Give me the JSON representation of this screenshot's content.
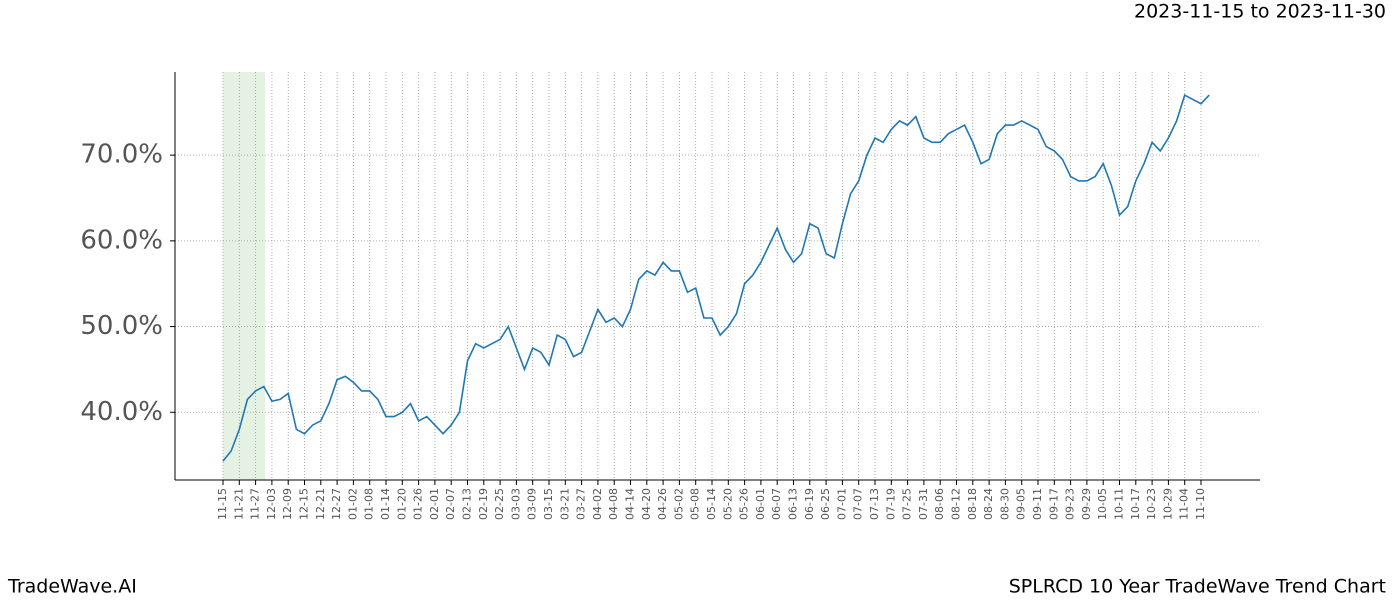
{
  "chart_data": {
    "type": "line",
    "title": "2023-11-15 to 2023-11-30",
    "brand": "TradeWave.AI",
    "subtitle": "SPLRCD 10 Year TradeWave Trend Chart",
    "categories": [
      "11-15",
      null,
      "11-21",
      null,
      "11-27",
      null,
      "12-03",
      null,
      "12-09",
      null,
      "12-15",
      null,
      "12-21",
      null,
      "12-27",
      null,
      "01-02",
      null,
      "01-08",
      null,
      "01-14",
      null,
      "01-20",
      null,
      "01-26",
      null,
      "02-01",
      null,
      "02-07",
      null,
      "02-13",
      null,
      "02-19",
      null,
      "02-25",
      null,
      "03-03",
      null,
      "03-09",
      null,
      "03-15",
      null,
      "03-21",
      null,
      "03-27",
      null,
      "04-02",
      null,
      "04-08",
      null,
      "04-14",
      null,
      "04-20",
      null,
      "04-26",
      null,
      "05-02",
      null,
      "05-08",
      null,
      "05-14",
      null,
      "05-20",
      null,
      "05-26",
      null,
      "06-01",
      null,
      "06-07",
      null,
      "06-13",
      null,
      "06-19",
      null,
      "06-25",
      null,
      "07-01",
      null,
      "07-07",
      null,
      "07-13",
      null,
      "07-19",
      null,
      "07-25",
      null,
      "07-31",
      null,
      "08-06",
      null,
      "08-12",
      null,
      "08-18",
      null,
      "08-24",
      null,
      "08-30",
      null,
      "09-05",
      null,
      "09-11",
      null,
      "09-17",
      null,
      "09-23",
      null,
      "09-29",
      null,
      "10-05",
      null,
      "10-11",
      null,
      "10-17",
      null,
      "10-23",
      null,
      "10-29",
      null,
      "11-04",
      null,
      "11-10",
      null
    ],
    "series": [
      {
        "color": "#1f77b4",
        "values": [
          34.3,
          35.5,
          38,
          41.5,
          42.5,
          43,
          41.3,
          41.5,
          42.2,
          38,
          37.5,
          38.5,
          39,
          41,
          43.8,
          44.2,
          43.5,
          42.5,
          42.5,
          41.5,
          39.5,
          39.5,
          40,
          41,
          39,
          39.5,
          38.5,
          37.5,
          38.5,
          40,
          46,
          48,
          47.5,
          48,
          48.5,
          50,
          47.5,
          45,
          47.5,
          47,
          45.5,
          49,
          48.5,
          46.5,
          47,
          49.5,
          52,
          50.5,
          51,
          50,
          52,
          55.5,
          56.5,
          56,
          57.5,
          56.5,
          56.5,
          54,
          54.5,
          51,
          51,
          49,
          50,
          51.5,
          55,
          56,
          57.5,
          59.5,
          61.5,
          59,
          57.5,
          58.5,
          62,
          61.5,
          58.5,
          58,
          62,
          65.5,
          67,
          70,
          72,
          71.5,
          73,
          74,
          73.5,
          74.5,
          72,
          71.5,
          71.5,
          72.5,
          73,
          73.5,
          71.5,
          69,
          69.5,
          72.5,
          73.5,
          73.5,
          74,
          73.5,
          73,
          71,
          70.5,
          69.5,
          67.5,
          67,
          67,
          67.5,
          69,
          66.5,
          63,
          64,
          67,
          69,
          71.5,
          70.5,
          72,
          74,
          77,
          76.5,
          76,
          77
        ]
      }
    ],
    "ylim": [
      32.1,
      79.7
    ],
    "yticks": [
      {
        "value": 40,
        "label": "40.0%"
      },
      {
        "value": 50,
        "label": "50.0%"
      },
      {
        "value": 60,
        "label": "60.0%"
      },
      {
        "value": 70,
        "label": "70.0%"
      }
    ],
    "grid": true
  }
}
